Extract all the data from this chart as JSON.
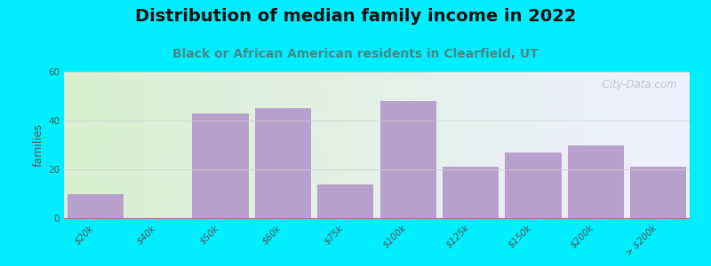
{
  "title": "Distribution of median family income in 2022",
  "subtitle": "Black or African American residents in Clearfield, UT",
  "categories": [
    "$20k",
    "$40k",
    "$50k",
    "$60k",
    "$75k",
    "$100k",
    "$125k",
    "$150k",
    "$200k",
    "> $200k"
  ],
  "values": [
    10,
    0,
    43,
    45,
    14,
    48,
    21,
    27,
    30,
    21
  ],
  "bar_color": "#b8a0cc",
  "background_outer": "#00eeff",
  "background_inner_left": "#d8f0d0",
  "background_inner_right": "#f0f0ff",
  "ylabel": "families",
  "ylim": [
    0,
    60
  ],
  "yticks": [
    0,
    20,
    40,
    60
  ],
  "title_fontsize": 14,
  "subtitle_fontsize": 10,
  "subtitle_color": "#448888",
  "watermark_text": "  City-Data.com",
  "watermark_color": "#b8b8c8",
  "tick_fontsize": 7.5,
  "ylabel_fontsize": 9
}
